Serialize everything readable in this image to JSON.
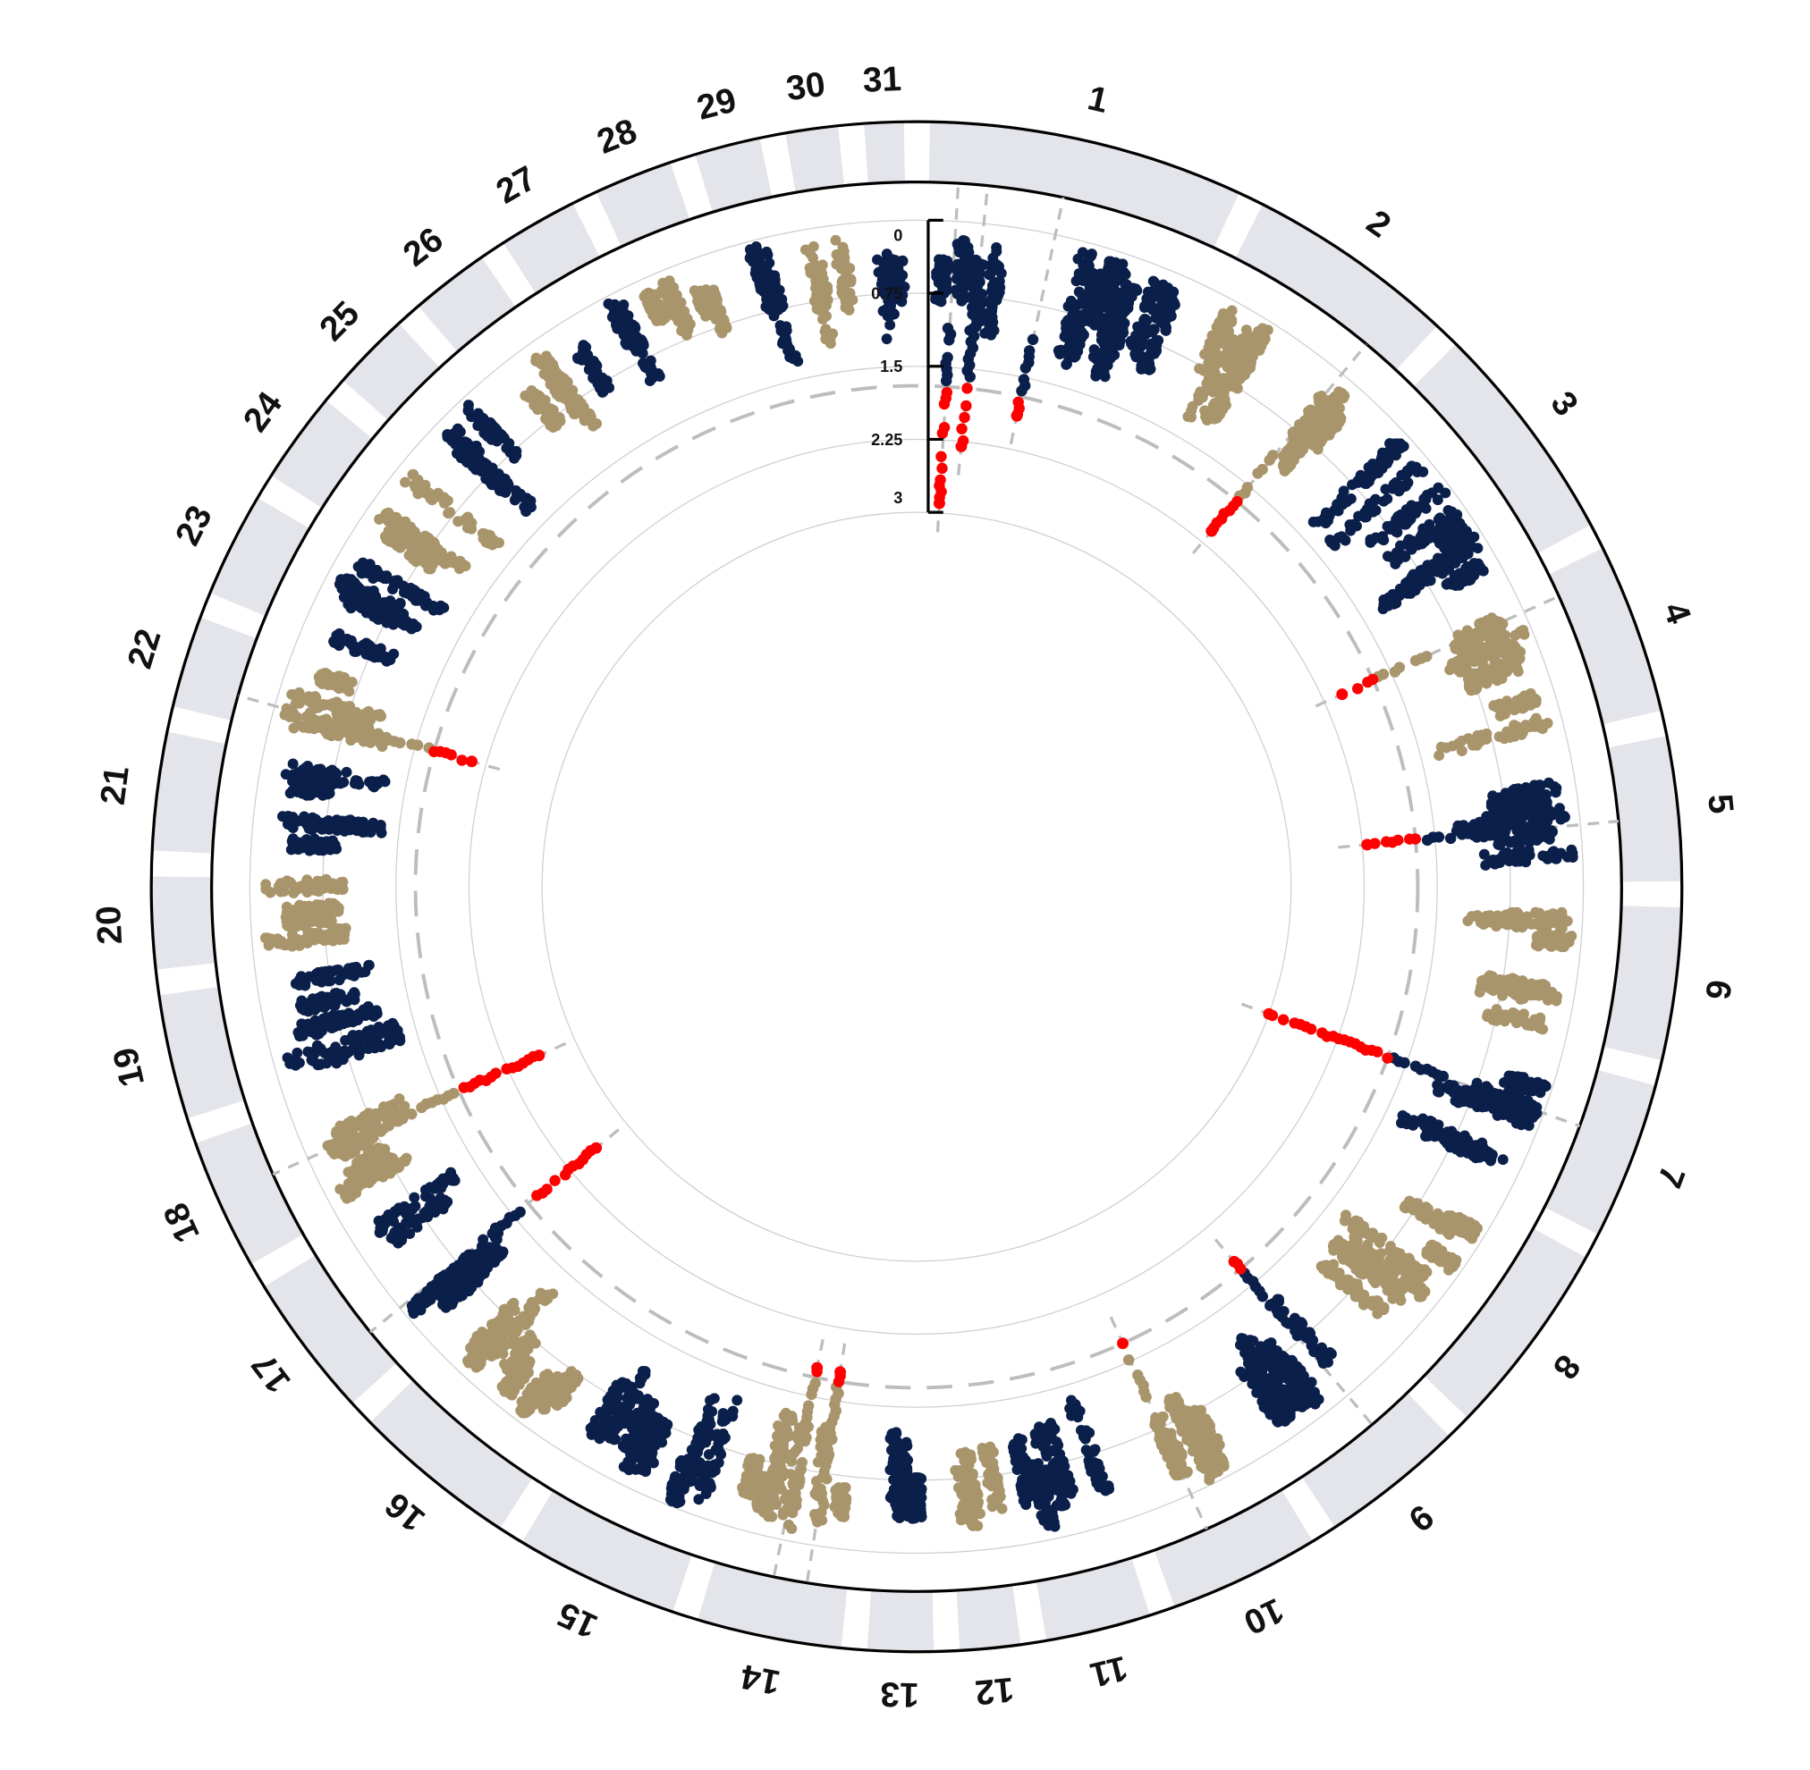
{
  "chart_data": {
    "type": "scatter",
    "layout": "circular-manhattan",
    "title": "",
    "radial_axis": {
      "ticks": [
        "0",
        "0.75",
        "1.5",
        "2.25",
        "3"
      ],
      "tick_values": [
        0,
        0.75,
        1.5,
        2.25,
        3
      ],
      "range": [
        0,
        3
      ],
      "direction": "inward",
      "grid": true
    },
    "threshold": 1.7,
    "colors": {
      "odd": "#0b1f4b",
      "even": "#a9956c",
      "significant": "#ff0000",
      "segment": "#e4e5ea",
      "threshold_line": "#bdbdbd",
      "grid": "#d0d0d0"
    },
    "chromosomes": [
      {
        "label": "1",
        "length": 24
      },
      {
        "label": "2",
        "length": 16
      },
      {
        "label": "3",
        "length": 17
      },
      {
        "label": "4",
        "length": 13
      },
      {
        "label": "5",
        "length": 11
      },
      {
        "label": "6",
        "length": 11.6
      },
      {
        "label": "7",
        "length": 12
      },
      {
        "label": "8",
        "length": 15
      },
      {
        "label": "9",
        "length": 11
      },
      {
        "label": "10",
        "length": 11.5
      },
      {
        "label": "11",
        "length": 8
      },
      {
        "label": "12",
        "length": 4.6
      },
      {
        "label": "13",
        "length": 5
      },
      {
        "label": "14",
        "length": 11
      },
      {
        "label": "15",
        "length": 12.5
      },
      {
        "label": "16",
        "length": 12.6
      },
      {
        "label": "17",
        "length": 11
      },
      {
        "label": "18",
        "length": 10
      },
      {
        "label": "19",
        "length": 9.5
      },
      {
        "label": "20",
        "length": 7
      },
      {
        "label": "21",
        "length": 9
      },
      {
        "label": "22",
        "length": 7
      },
      {
        "label": "23",
        "length": 8
      },
      {
        "label": "24",
        "length": 7
      },
      {
        "label": "25",
        "length": 6
      },
      {
        "label": "26",
        "length": 6
      },
      {
        "label": "27",
        "length": 6
      },
      {
        "label": "28",
        "length": 6
      },
      {
        "label": "29",
        "length": 5
      },
      {
        "label": "30",
        "length": 4
      },
      {
        "label": "31",
        "length": 3
      }
    ],
    "significant_hits": [
      {
        "chromosome": "1",
        "position": 0.1,
        "value": 2.9
      },
      {
        "chromosome": "1",
        "position": 0.2,
        "value": 2.3
      },
      {
        "chromosome": "1",
        "position": 0.46,
        "value": 1.9
      },
      {
        "chromosome": "2",
        "position": 0.8,
        "value": 2.1
      },
      {
        "chromosome": "4",
        "position": 0.15,
        "value": 2.05
      },
      {
        "chromosome": "5",
        "position": 0.55,
        "value": 2.2
      },
      {
        "chromosome": "7",
        "position": 0.4,
        "value": 3.0
      },
      {
        "chromosome": "9",
        "position": 0.35,
        "value": 1.8
      },
      {
        "chromosome": "10",
        "position": 0.6,
        "value": 1.7
      },
      {
        "chromosome": "14",
        "position": 0.3,
        "value": 1.8
      },
      {
        "chromosome": "14",
        "position": 0.55,
        "value": 1.8
      },
      {
        "chromosome": "17",
        "position": 0.3,
        "value": 2.6
      },
      {
        "chromosome": "18",
        "position": 0.55,
        "value": 2.6
      },
      {
        "chromosome": "22",
        "position": 0.3,
        "value": 2.1
      }
    ],
    "background": {
      "min_value": 0.05,
      "max_value": 1.35,
      "points_per_unit_length": 28,
      "seed": 7
    }
  }
}
